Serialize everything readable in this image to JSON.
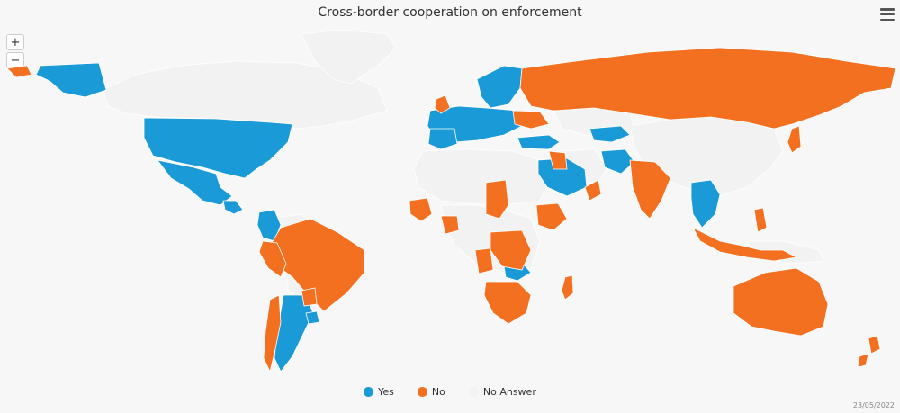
{
  "header": {
    "title": "Cross-border cooperation on enforcement"
  },
  "controls": {
    "zoom_in": "+",
    "zoom_out": "−",
    "menu_icon": "hamburger-menu-icon"
  },
  "legend": [
    {
      "label": "Yes",
      "color": "#1a9ad6"
    },
    {
      "label": "No",
      "color": "#f37021"
    },
    {
      "label": "No Answer",
      "color": "#f2f2f2"
    }
  ],
  "footer": {
    "date": "23/05/2022"
  },
  "map_data": {
    "categories": [
      "Yes",
      "No",
      "No Answer"
    ],
    "yes": [
      "Alaska (USA)",
      "United States",
      "Mexico",
      "Guatemala",
      "Costa Rica",
      "Panama",
      "Colombia",
      "Argentina",
      "Uruguay",
      "Norway",
      "Sweden",
      "Finland",
      "Estonia",
      "Latvia",
      "Lithuania",
      "Ireland",
      "Portugal",
      "Spain",
      "France",
      "Germany",
      "Netherlands",
      "Belgium",
      "Poland",
      "Czechia",
      "Austria",
      "Switzerland",
      "Italy",
      "Greece",
      "Turkey",
      "Georgia",
      "Saudi Arabia",
      "Pakistan",
      "Uzbekistan",
      "Thailand",
      "Vietnam",
      "Zambia"
    ],
    "no": [
      "Russia",
      "Ukraine",
      "United Kingdom",
      "Brazil",
      "Chile",
      "Peru",
      "India",
      "Ethiopia",
      "Chad",
      "Nigeria",
      "Gabon",
      "Congo DR",
      "Angola",
      "Mozambique",
      "Madagascar",
      "Botswana",
      "South Africa",
      "Oman",
      "Egypt",
      "Morocco",
      "Australia",
      "New Zealand",
      "Indonesia",
      "Philippines",
      "Japan",
      "Paraguay"
    ],
    "no_answer": [
      "Canada",
      "Greenland",
      "China",
      "Mongolia",
      "Kazakhstan",
      "Algeria",
      "Libya",
      "Sudan",
      "Iran",
      "Venezuela",
      "Bolivia"
    ]
  }
}
